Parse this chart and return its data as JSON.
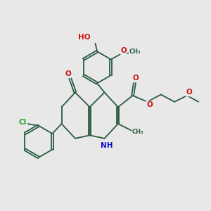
{
  "bg": "#e8e8e8",
  "bc": "#2a5c3f",
  "lw": 1.3,
  "dbo": 0.025,
  "fs": 7.5,
  "colors": {
    "O": "#cc1111",
    "N": "#1111cc",
    "Cl": "#22aa22",
    "C": "#2a5c3f"
  },
  "xlim": [
    -1.7,
    2.3
  ],
  "ylim": [
    -0.95,
    1.45
  ]
}
